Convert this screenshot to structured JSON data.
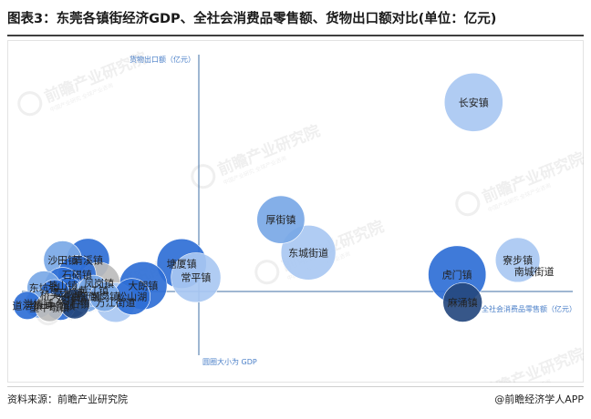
{
  "title": "图表3：东莞各镇街经济GDP、全社会消费品零售额、货物出口额对比(单位：亿元)",
  "footer": {
    "source": "资料来源：前瞻产业研究院",
    "credit": "@前瞻经济学人APP"
  },
  "watermark": {
    "brand": "前瞻产业研究院",
    "sub": "中国产业研究 全球产业咨询"
  },
  "colors": {
    "light": "#a9c8f2",
    "mid": "#7aa8e6",
    "dark": "#2f6fd6",
    "navy": "#26497f",
    "gray": "#bcbcbc",
    "axis": "#3f6fa6"
  },
  "chart_data": {
    "type": "bubble",
    "xlabel": "全社会消费品零售额（亿元）",
    "ylabel": "货物出口额（亿元）",
    "size_label": "圆圈大小为 GDP",
    "xlim": [
      -70,
      430
    ],
    "ylim": [
      -100,
      310
    ],
    "points": [
      {
        "name": "长安镇",
        "x": 340,
        "y": 245,
        "gdp": 780,
        "shade": "light"
      },
      {
        "name": "厚街镇",
        "x": 165,
        "y": 85,
        "gdp": 520,
        "shade": "mid"
      },
      {
        "name": "东城街道",
        "x": 190,
        "y": 40,
        "gdp": 680,
        "shade": "light"
      },
      {
        "name": "虎门镇",
        "x": 325,
        "y": 10,
        "gdp": 760,
        "shade": "dark"
      },
      {
        "name": "寮步镇",
        "x": 380,
        "y": 30,
        "gdp": 450,
        "shade": "light"
      },
      {
        "name": "南城街道",
        "x": 395,
        "y": 14,
        "gdp": 0,
        "shade": "light"
      },
      {
        "name": "麻涌镇",
        "x": 330,
        "y": -28,
        "gdp": 350,
        "shade": "navy"
      },
      {
        "name": "塘厦镇",
        "x": 75,
        "y": 25,
        "gdp": 560,
        "shade": "dark"
      },
      {
        "name": "常平镇",
        "x": 88,
        "y": 6,
        "gdp": 560,
        "shade": "light"
      },
      {
        "name": "大朗镇",
        "x": 40,
        "y": -5,
        "gdp": 520,
        "shade": "dark"
      },
      {
        "name": "清溪镇",
        "x": -10,
        "y": 30,
        "gdp": 420,
        "shade": "dark"
      },
      {
        "name": "沙田镇",
        "x": -33,
        "y": 30,
        "gdp": 330,
        "shade": "mid"
      },
      {
        "name": "石碣镇",
        "x": -20,
        "y": 10,
        "gdp": 330,
        "shade": "dark"
      },
      {
        "name": "茶山镇",
        "x": -33,
        "y": -5,
        "gdp": 300,
        "shade": "dark"
      },
      {
        "name": "凤岗镇",
        "x": 0,
        "y": -2,
        "gdp": 400,
        "shade": "gray"
      },
      {
        "name": "东坑镇",
        "x": -50,
        "y": -8,
        "gdp": 260,
        "shade": "mid"
      },
      {
        "name": "石排镇",
        "x": -25,
        "y": -25,
        "gdp": 280,
        "shade": "navy"
      },
      {
        "name": "万江街道",
        "x": 15,
        "y": -28,
        "gdp": 360,
        "shade": "light"
      },
      {
        "name": "松山湖",
        "x": 30,
        "y": -20,
        "gdp": 300,
        "shade": "dark"
      },
      {
        "name": "洪梅镇",
        "x": -55,
        "y": -30,
        "gdp": 180,
        "shade": "mid"
      },
      {
        "name": "道滘镇",
        "x": -65,
        "y": -32,
        "gdp": 180,
        "shade": "dark"
      },
      {
        "name": "望牛墩镇",
        "x": -45,
        "y": -35,
        "gdp": 180,
        "shade": "gray"
      },
      {
        "name": "中堂镇",
        "x": -35,
        "y": -32,
        "gdp": 200,
        "shade": "dark"
      },
      {
        "name": "高埗镇",
        "x": -28,
        "y": -15,
        "gdp": 220,
        "shade": "dark"
      },
      {
        "name": "横沥镇",
        "x": -12,
        "y": -20,
        "gdp": 220,
        "shade": "mid"
      },
      {
        "name": "黄江镇",
        "x": -5,
        "y": -12,
        "gdp": 220,
        "shade": "mid"
      },
      {
        "name": "桥头镇",
        "x": -40,
        "y": -18,
        "gdp": 220,
        "shade": "dark"
      },
      {
        "name": "企石镇",
        "x": -22,
        "y": -30,
        "gdp": 200,
        "shade": "navy"
      },
      {
        "name": "谢岗镇",
        "x": 5,
        "y": -20,
        "gdp": 200,
        "shade": "mid"
      }
    ]
  }
}
